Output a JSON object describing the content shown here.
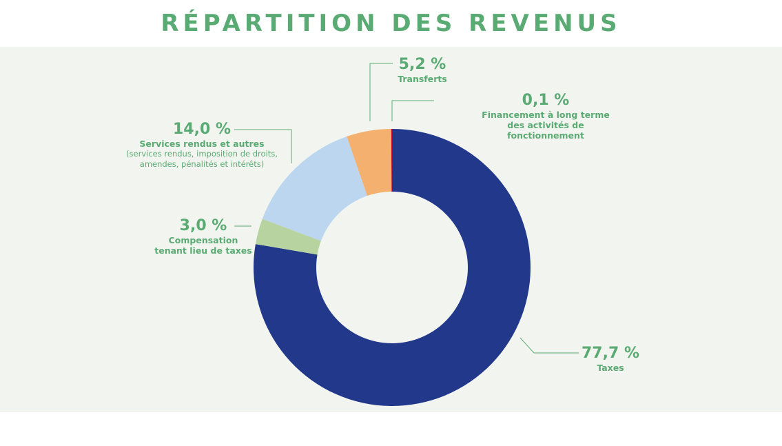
{
  "chart_data": {
    "type": "pie",
    "donut": true,
    "title": "RÉPARTITION DES REVENUS",
    "categories": [
      "Taxes",
      "Compensation tenant lieu de taxes",
      "Services rendus et autres",
      "Transferts",
      "Financement à long terme des activités de fonctionnement"
    ],
    "descriptions": [
      null,
      null,
      "(services rendus, imposition de droits, amendes, pénalités et intérêts)",
      null,
      null
    ],
    "values": [
      77.7,
      3.0,
      14.0,
      5.2,
      0.1
    ],
    "value_labels": [
      "77,7 %",
      "3,0 %",
      "14,0 %",
      "5,2 %",
      "0,1 %"
    ],
    "colors": [
      "#22388b",
      "#b7d4a0",
      "#bcd6f0",
      "#f4b06e",
      "#c8102e"
    ]
  }
}
